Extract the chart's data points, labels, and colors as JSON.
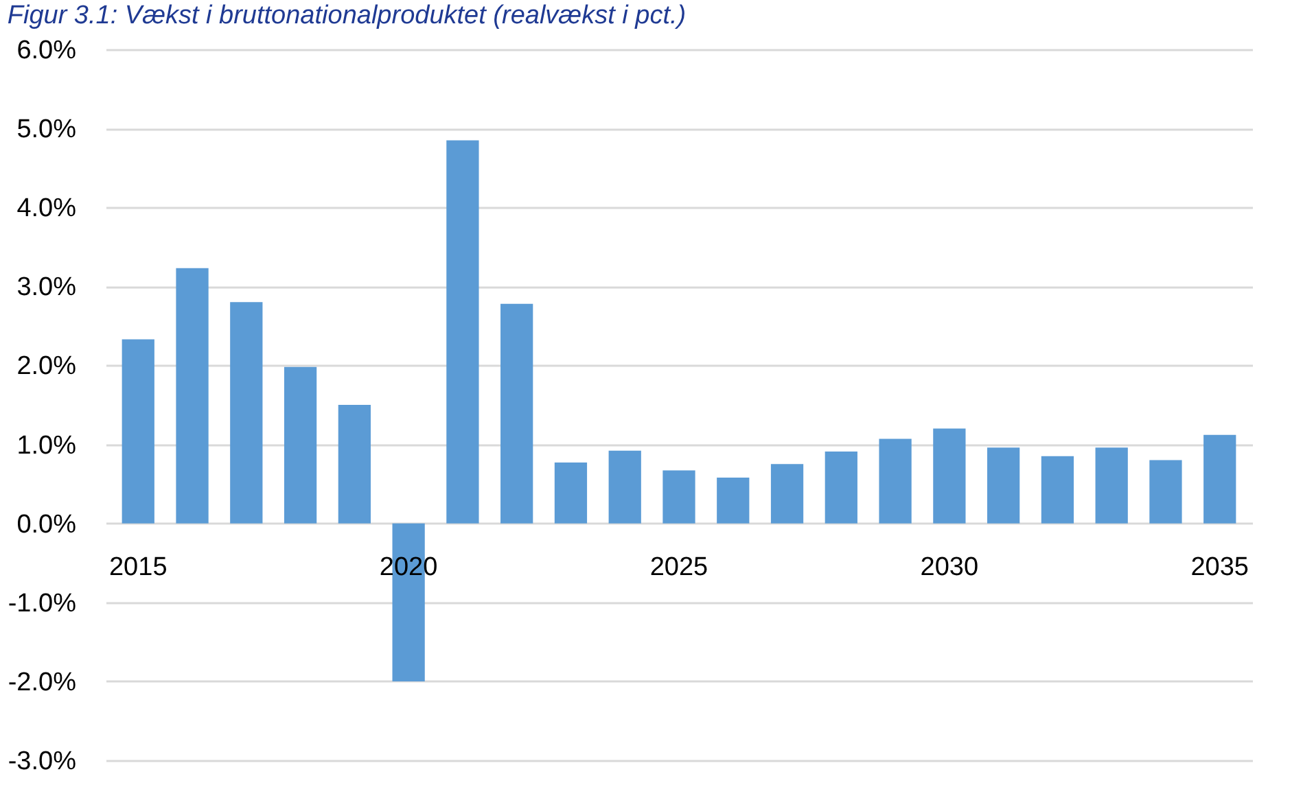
{
  "chart_data": {
    "type": "bar",
    "title": "Figur 3.1: Vækst i bruttonationalproduktet (realvækst i pct.)",
    "categories": [
      "2015",
      null,
      null,
      null,
      null,
      "2020",
      null,
      null,
      null,
      null,
      "2025",
      null,
      null,
      null,
      null,
      "2030",
      null,
      null,
      null,
      null,
      "2035"
    ],
    "values": [
      2.33,
      3.23,
      2.8,
      1.98,
      1.5,
      -2.0,
      4.85,
      2.78,
      0.77,
      0.92,
      0.67,
      0.58,
      0.75,
      0.91,
      1.07,
      1.2,
      0.96,
      0.85,
      0.96,
      0.8,
      1.12
    ],
    "color": "#5b9bd5",
    "ylim": [
      -3,
      6
    ],
    "yticks": [
      {
        "value": -3,
        "label": "-3.0%"
      },
      {
        "value": -2,
        "label": "-2.0%"
      },
      {
        "value": -1,
        "label": "-1.0%"
      },
      {
        "value": 0,
        "label": "0.0%"
      },
      {
        "value": 1,
        "label": "1.0%"
      },
      {
        "value": 2,
        "label": "2.0%"
      },
      {
        "value": 3,
        "label": "3.0%"
      },
      {
        "value": 4,
        "label": "4.0%"
      },
      {
        "value": 5,
        "label": "5.0%"
      },
      {
        "value": 6,
        "label": "6.0%"
      }
    ],
    "grid": "y"
  }
}
